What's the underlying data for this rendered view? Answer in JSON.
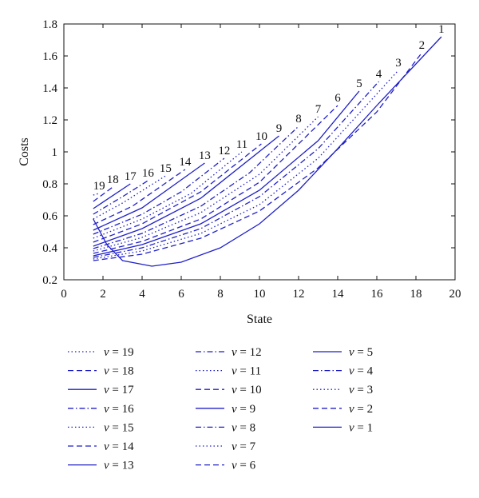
{
  "chart_data": {
    "type": "line",
    "xlabel": "State",
    "ylabel": "Costs",
    "xlim": [
      0,
      20
    ],
    "ylim": [
      0.2,
      1.8
    ],
    "x_ticks": [
      0,
      2,
      4,
      6,
      8,
      10,
      12,
      14,
      16,
      18,
      20
    ],
    "y_ticks": [
      0.2,
      0.4,
      0.6,
      0.8,
      1,
      1.2,
      1.4,
      1.6,
      1.8
    ],
    "grid": false,
    "legend": {
      "placement": "below",
      "columns": 3,
      "symbol": "ν",
      "equals": " = "
    },
    "color": "#1f1fc8",
    "series": [
      {
        "name": "19",
        "style": "dotted",
        "points": [
          [
            1.5,
            0.73
          ],
          [
            1.8,
            0.74
          ]
        ]
      },
      {
        "name": "18",
        "style": "dashed",
        "points": [
          [
            1.5,
            0.69
          ],
          [
            2.5,
            0.78
          ]
        ]
      },
      {
        "name": "17",
        "style": "solid",
        "points": [
          [
            1.5,
            0.645
          ],
          [
            3.4,
            0.8
          ]
        ]
      },
      {
        "name": "16",
        "style": "dashdot",
        "points": [
          [
            1.5,
            0.61
          ],
          [
            3.0,
            0.72
          ],
          [
            4.3,
            0.82
          ]
        ]
      },
      {
        "name": "15",
        "style": "dotted",
        "points": [
          [
            1.5,
            0.58
          ],
          [
            3.0,
            0.68
          ],
          [
            5.2,
            0.85
          ]
        ]
      },
      {
        "name": "14",
        "style": "dashed",
        "points": [
          [
            1.5,
            0.545
          ],
          [
            3.5,
            0.66
          ],
          [
            6.2,
            0.89
          ]
        ]
      },
      {
        "name": "13",
        "style": "solid",
        "points": [
          [
            1.5,
            0.51
          ],
          [
            4.0,
            0.65
          ],
          [
            7.2,
            0.93
          ]
        ]
      },
      {
        "name": "12",
        "style": "dashdot",
        "points": [
          [
            1.5,
            0.485
          ],
          [
            4.0,
            0.61
          ],
          [
            6.0,
            0.75
          ],
          [
            8.2,
            0.96
          ]
        ]
      },
      {
        "name": "11",
        "style": "dotted",
        "points": [
          [
            1.5,
            0.46
          ],
          [
            4.0,
            0.58
          ],
          [
            6.5,
            0.74
          ],
          [
            9.1,
            1.0
          ]
        ]
      },
      {
        "name": "10",
        "style": "dashed",
        "points": [
          [
            1.5,
            0.435
          ],
          [
            4.0,
            0.55
          ],
          [
            7.0,
            0.75
          ],
          [
            10.1,
            1.05
          ]
        ]
      },
      {
        "name": "9",
        "style": "solid",
        "points": [
          [
            1.5,
            0.41
          ],
          [
            4.0,
            0.52
          ],
          [
            7.0,
            0.71
          ],
          [
            11.0,
            1.1
          ]
        ]
      },
      {
        "name": "8",
        "style": "dashdot",
        "points": [
          [
            1.5,
            0.395
          ],
          [
            4.0,
            0.49
          ],
          [
            7.0,
            0.66
          ],
          [
            9.5,
            0.87
          ],
          [
            12.0,
            1.16
          ]
        ]
      },
      {
        "name": "7",
        "style": "dotted",
        "points": [
          [
            1.5,
            0.38
          ],
          [
            4.0,
            0.465
          ],
          [
            7.0,
            0.62
          ],
          [
            10.0,
            0.86
          ],
          [
            13.0,
            1.22
          ]
        ]
      },
      {
        "name": "6",
        "style": "dashed",
        "points": [
          [
            1.5,
            0.365
          ],
          [
            4.0,
            0.44
          ],
          [
            7.0,
            0.58
          ],
          [
            10.0,
            0.81
          ],
          [
            14.0,
            1.29
          ]
        ]
      },
      {
        "name": "5",
        "style": "solid",
        "points": [
          [
            1.5,
            0.35
          ],
          [
            4.0,
            0.42
          ],
          [
            7.0,
            0.55
          ],
          [
            10.0,
            0.76
          ],
          [
            13.0,
            1.07
          ],
          [
            15.1,
            1.38
          ]
        ]
      },
      {
        "name": "4",
        "style": "dashdot",
        "points": [
          [
            1.5,
            0.34
          ],
          [
            4.0,
            0.4
          ],
          [
            7.0,
            0.52
          ],
          [
            10.0,
            0.72
          ],
          [
            13.0,
            1.02
          ],
          [
            16.1,
            1.44
          ]
        ]
      },
      {
        "name": "3",
        "style": "dotted",
        "points": [
          [
            1.5,
            0.33
          ],
          [
            4.0,
            0.38
          ],
          [
            7.0,
            0.49
          ],
          [
            10.0,
            0.67
          ],
          [
            13.0,
            0.96
          ],
          [
            17.1,
            1.51
          ]
        ]
      },
      {
        "name": "2",
        "style": "dashed",
        "points": [
          [
            1.5,
            0.32
          ],
          [
            4.0,
            0.36
          ],
          [
            7.0,
            0.46
          ],
          [
            10.0,
            0.63
          ],
          [
            13.0,
            0.9
          ],
          [
            16.0,
            1.25
          ],
          [
            18.3,
            1.62
          ]
        ]
      },
      {
        "name": "1",
        "style": "solid",
        "points": [
          [
            1.5,
            0.58
          ],
          [
            2.2,
            0.42
          ],
          [
            3.0,
            0.32
          ],
          [
            4.5,
            0.285
          ],
          [
            6.0,
            0.31
          ],
          [
            8.0,
            0.4
          ],
          [
            10.0,
            0.55
          ],
          [
            12.0,
            0.76
          ],
          [
            14.0,
            1.02
          ],
          [
            16.0,
            1.29
          ],
          [
            18.0,
            1.55
          ],
          [
            19.3,
            1.72
          ]
        ]
      }
    ]
  }
}
